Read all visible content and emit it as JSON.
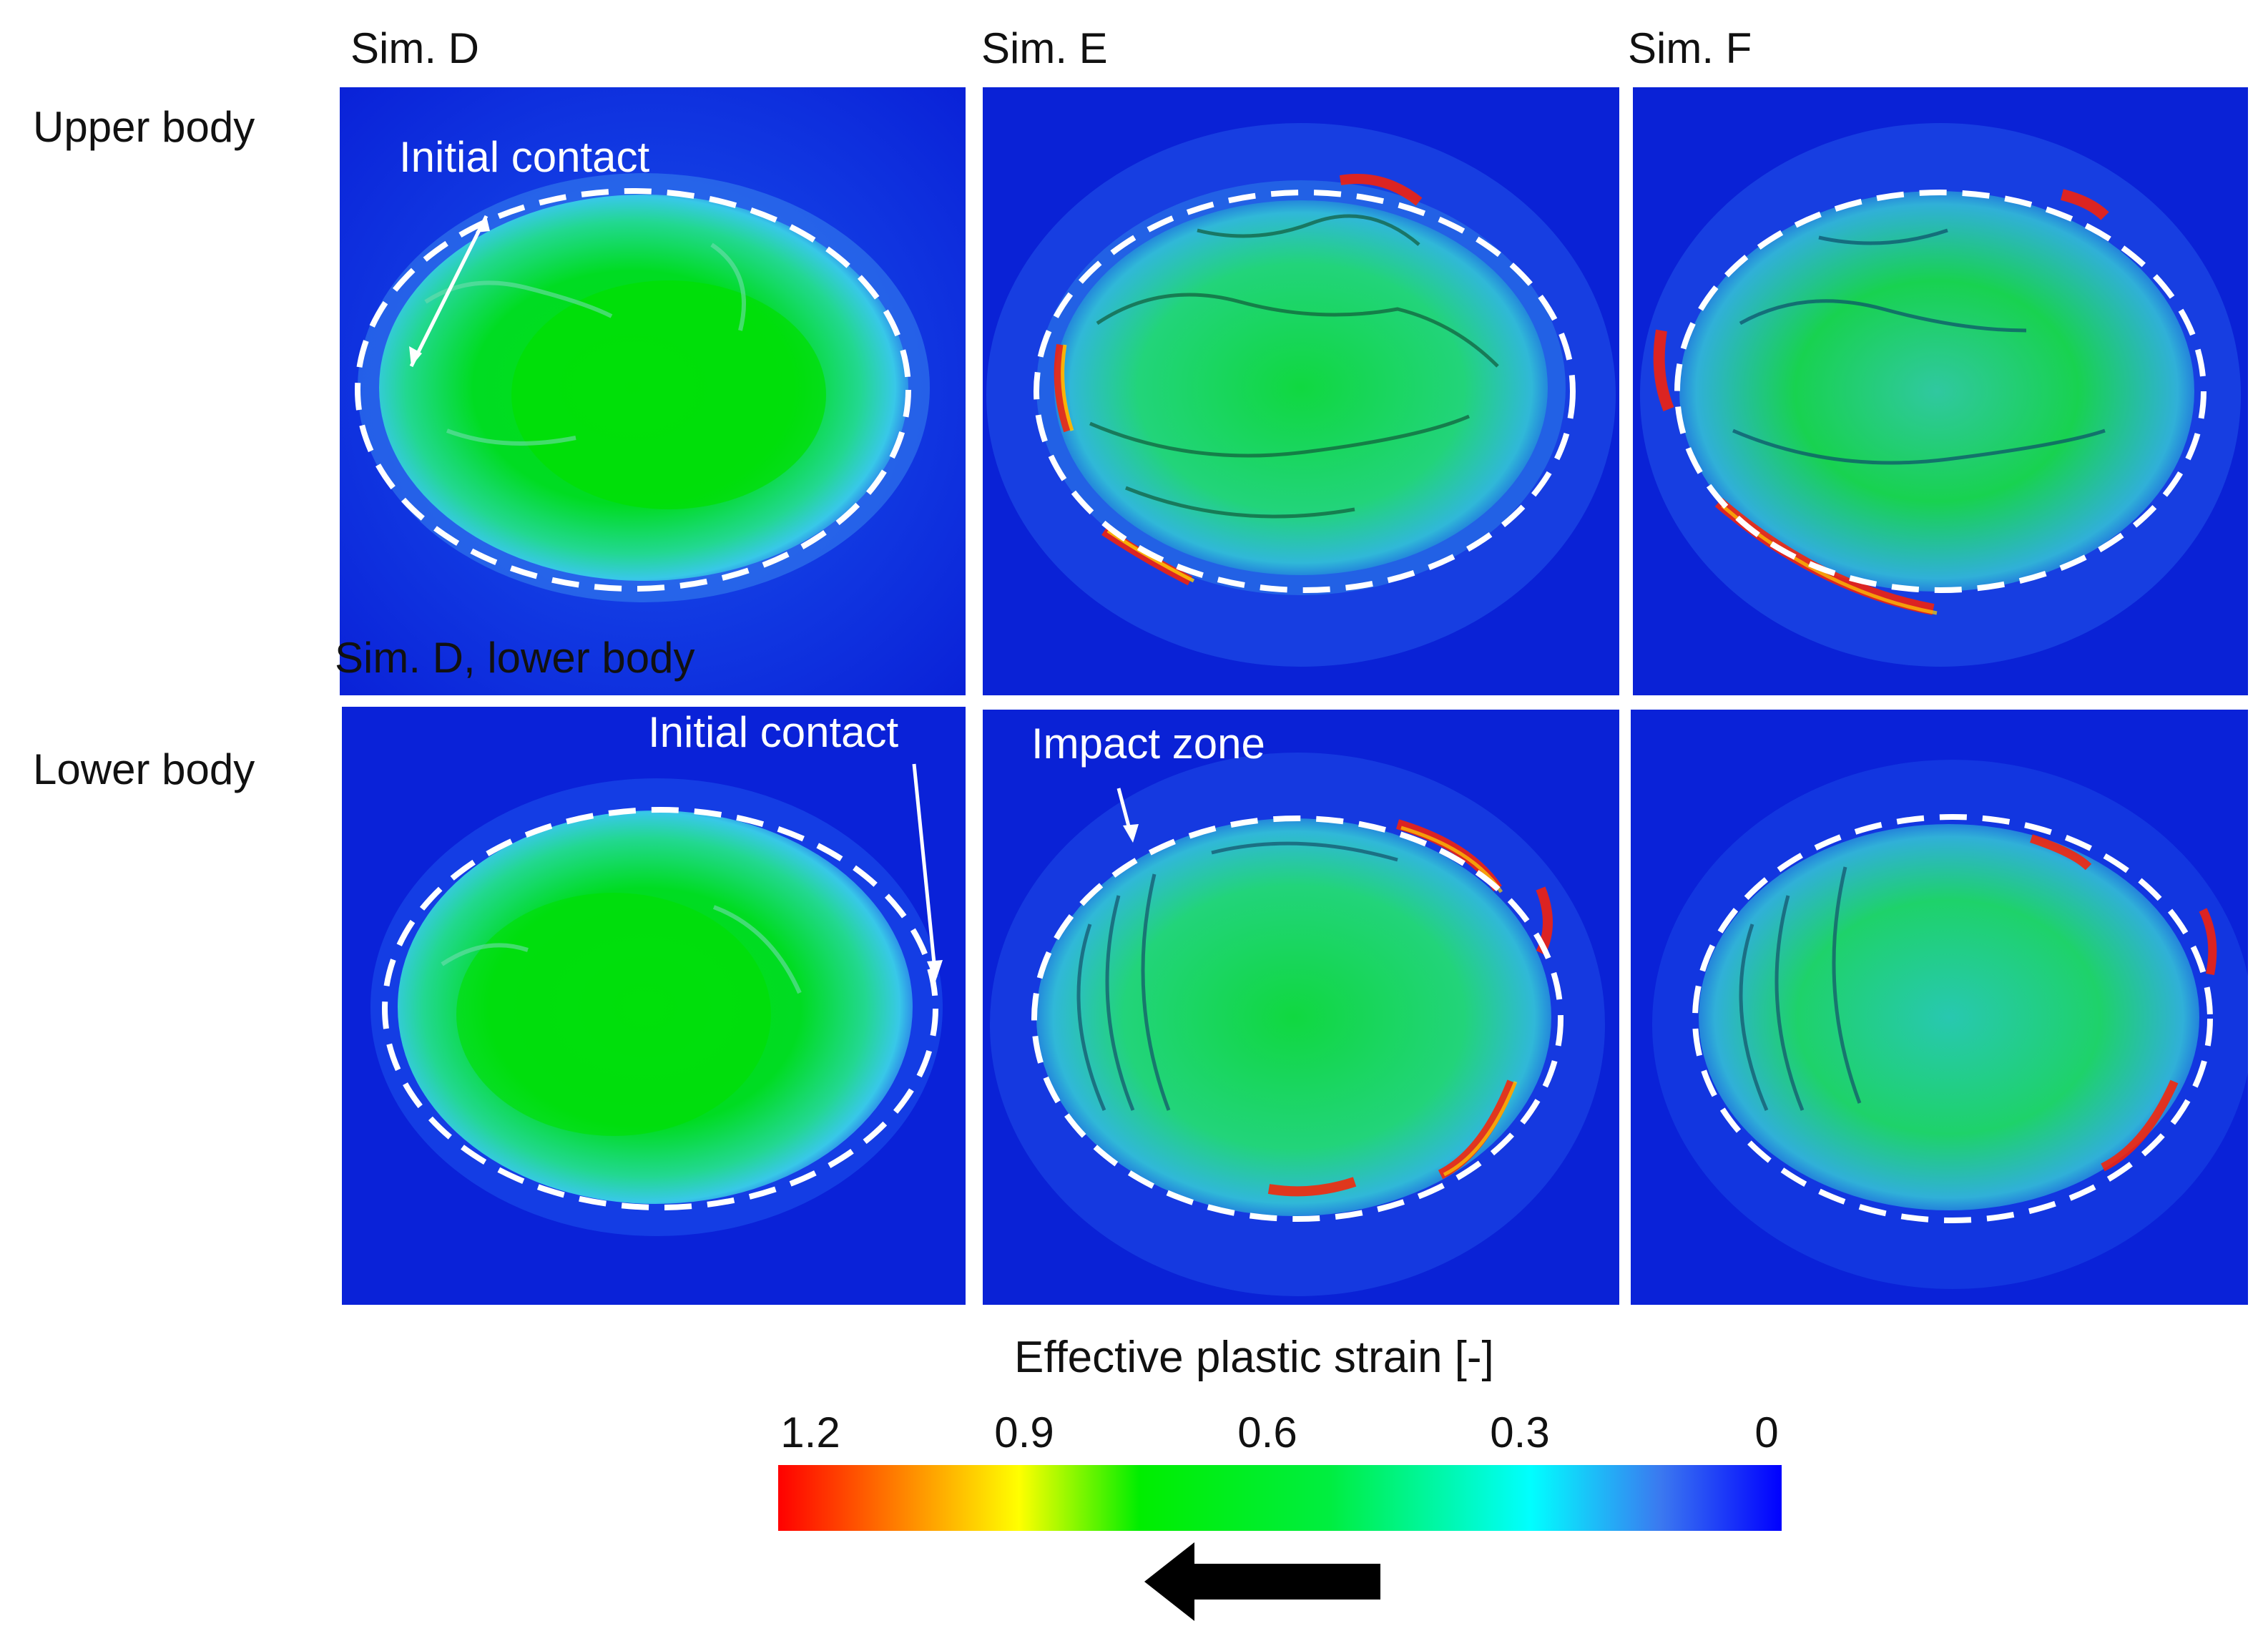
{
  "column_headers": [
    "Sim. D",
    "Sim. E",
    "Sim. F"
  ],
  "row_labels": {
    "upper": "Upper body",
    "lower": "Lower body"
  },
  "annotations": {
    "upper_d_contact": "Initial contact",
    "lower_d_title": "Sim. D, lower body",
    "lower_d_contact": "Initial contact",
    "lower_e_impact": "Impact zone"
  },
  "colorbar": {
    "title": "Effective plastic strain [-]",
    "ticks": [
      "1.2",
      "0.9",
      "0.6",
      "0.3",
      "0"
    ],
    "min": 0,
    "max": 1.2,
    "colors_high_to_low": [
      "#ff0000",
      "#ffff00",
      "#00ff00",
      "#00ffff",
      "#0000ff"
    ]
  },
  "colors": {
    "background_field": "#0a1fd8",
    "contour_green": "#00e000",
    "outline_dash": "#ffffff",
    "arrow": "#000000"
  },
  "icons": {
    "flow_arrow": "left-arrow-icon",
    "contact_pointer": "arrow-icon"
  }
}
